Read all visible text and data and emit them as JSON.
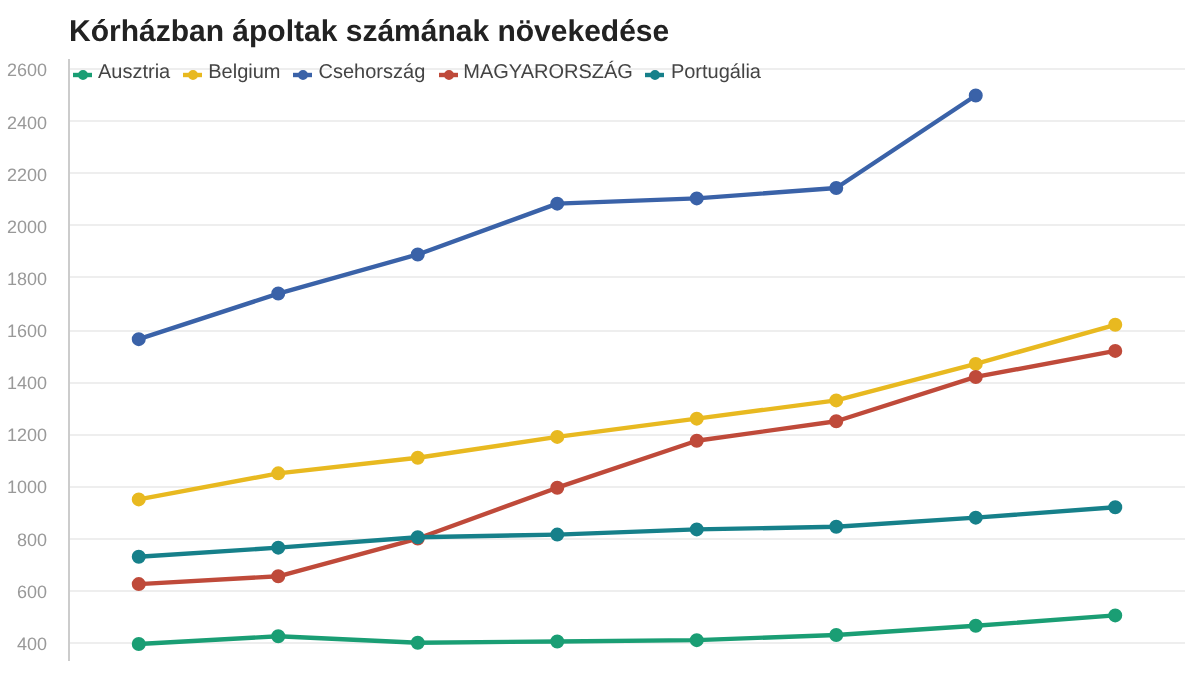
{
  "chart_data": {
    "type": "line",
    "title": "Kórházban ápoltak számának növekedése",
    "categories": [
      null,
      null,
      null,
      null,
      null,
      null,
      null,
      null
    ],
    "ylim": [
      330,
      2640
    ],
    "yticks": [
      400,
      600,
      800,
      1000,
      1200,
      1400,
      1600,
      1800,
      2000,
      2200,
      2400,
      2600
    ],
    "grid": "y",
    "legend": "top left",
    "marker": "circle",
    "line_style": "solid",
    "series": [
      {
        "name": "Ausztria",
        "color": "#1a9e74",
        "values": [
          395,
          425,
          400,
          405,
          410,
          430,
          465,
          505
        ]
      },
      {
        "name": "Belgium",
        "color": "#e8b920",
        "values": [
          950,
          1050,
          1110,
          1190,
          1260,
          1330,
          1470,
          1620
        ]
      },
      {
        "name": "Csehország",
        "color": "#3a62a8",
        "values": [
          1565,
          1740,
          1890,
          2085,
          2105,
          2145,
          2500,
          null
        ]
      },
      {
        "name": "MAGYARORSZÁG",
        "color": "#bf4a3a",
        "values": [
          625,
          655,
          800,
          995,
          1175,
          1250,
          1420,
          1520
        ]
      },
      {
        "name": "Portugália",
        "color": "#16808a",
        "values": [
          730,
          765,
          805,
          815,
          835,
          845,
          880,
          920
        ]
      }
    ]
  }
}
